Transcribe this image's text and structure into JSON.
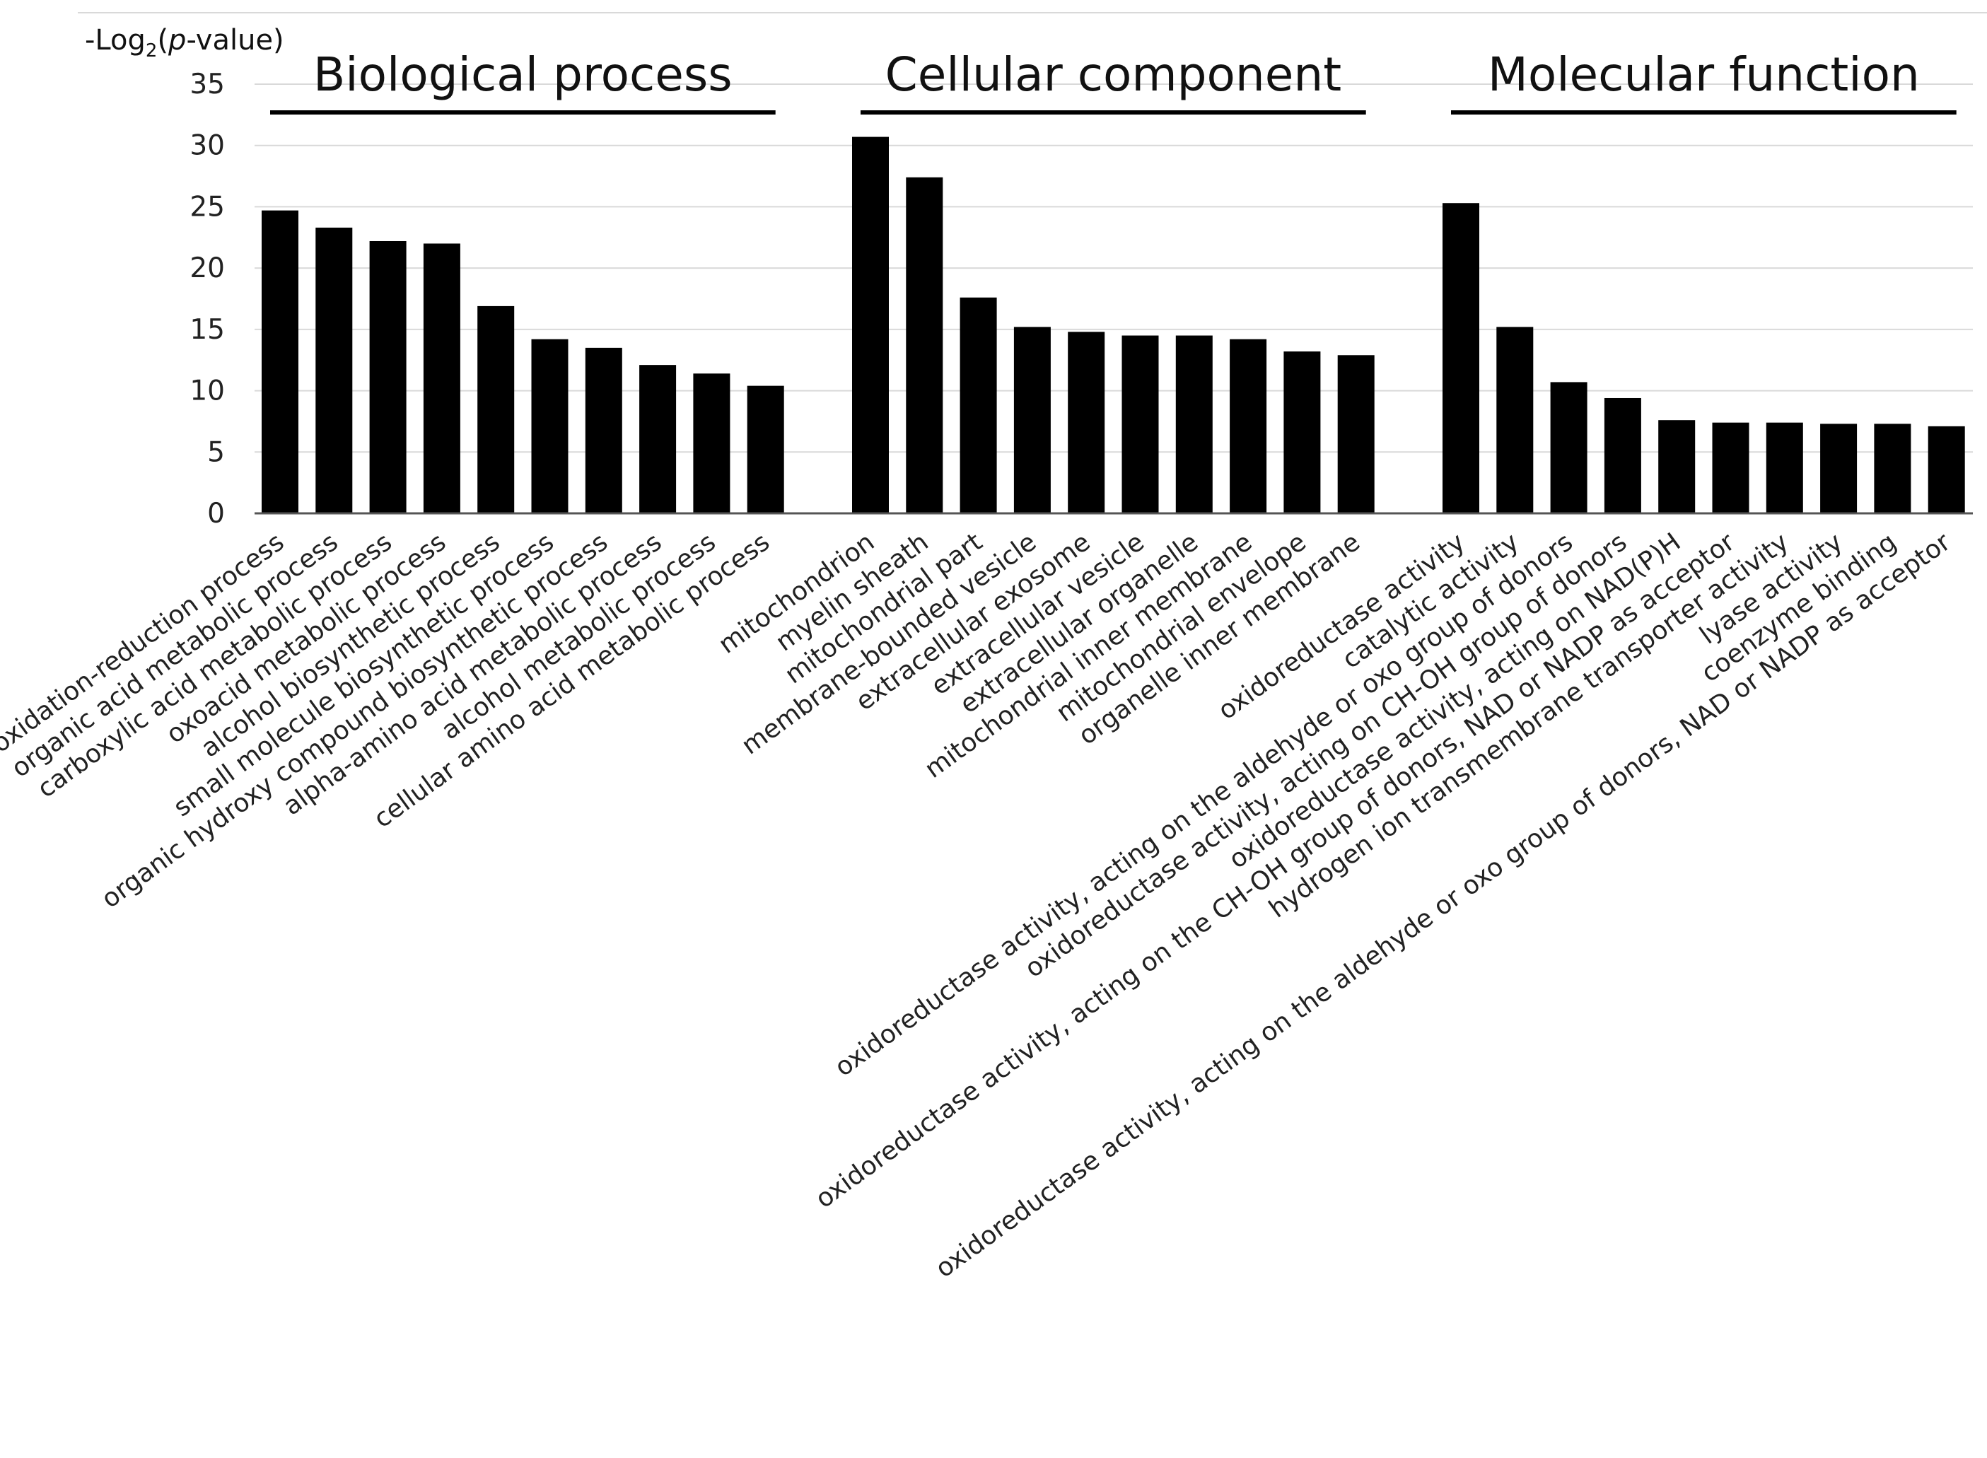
{
  "chart_data": {
    "type": "bar",
    "title": "",
    "xlabel": "",
    "ylabel_parts": [
      "-Log",
      "2",
      "(",
      "p",
      "-value)"
    ],
    "ylim": [
      0,
      35
    ],
    "yticks": [
      0,
      5,
      10,
      15,
      20,
      25,
      30,
      35
    ],
    "grid": true,
    "groups": [
      {
        "name": "Biological process",
        "categories": [
          "oxidation-reduction process",
          "organic acid metabolic process",
          "carboxylic acid metabolic process",
          "oxoacid metabolic process",
          "alcohol biosynthetic process",
          "small molecule biosynthetic process",
          "organic hydroxy compound biosynthetic process",
          "alpha-amino acid metabolic process",
          "alcohol metabolic process",
          "cellular amino acid metabolic process"
        ],
        "values": [
          24.7,
          23.3,
          22.2,
          22.0,
          16.9,
          14.2,
          13.5,
          12.1,
          11.4,
          10.4
        ]
      },
      {
        "name": "Cellular component",
        "categories": [
          "mitochondrion",
          "myelin sheath",
          "mitochondrial part",
          "membrane-bounded vesicle",
          "extracellular exosome",
          "extracellular vesicle",
          "extracellular organelle",
          "mitochondrial inner membrane",
          "mitochondrial envelope",
          "organelle inner membrane"
        ],
        "values": [
          30.7,
          27.4,
          17.6,
          15.2,
          14.8,
          14.5,
          14.5,
          14.2,
          13.2,
          12.9
        ]
      },
      {
        "name": "Molecular function",
        "categories": [
          "oxidoreductase activity",
          "catalytic activity",
          "oxidoreductase activity, acting on the aldehyde or oxo group of donors",
          "oxidoreductase activity, acting on CH-OH group of donors",
          "oxidoreductase activity, acting on NAD(P)H",
          "oxidoreductase activity, acting on the CH-OH group of donors, NAD or NADP as acceptor",
          "hydrogen ion transmembrane transporter activity",
          "lyase activity",
          "coenzyme binding",
          "oxidoreductase activity, acting on the aldehyde or oxo group of donors, NAD or NADP as acceptor"
        ],
        "values": [
          25.3,
          15.2,
          10.7,
          9.4,
          7.6,
          7.4,
          7.4,
          7.3,
          7.3,
          7.1
        ]
      }
    ]
  }
}
